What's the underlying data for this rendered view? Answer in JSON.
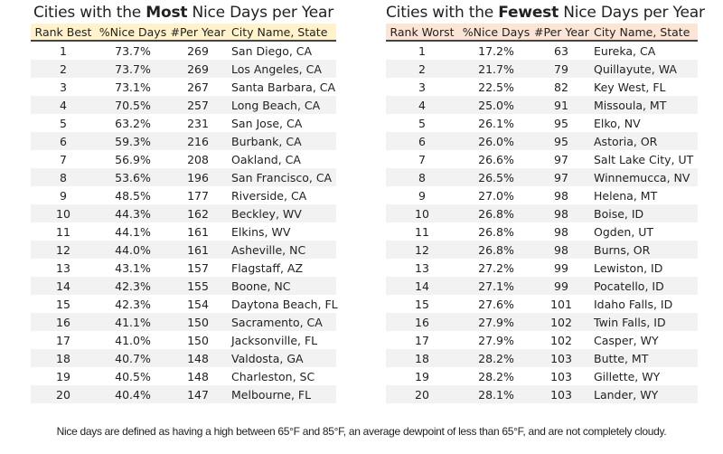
{
  "left": {
    "title_pre": "Cities with the ",
    "title_bold": "Most",
    "title_post": " Nice Days per Year",
    "header_color": "#fff2cc",
    "columns": [
      "Rank Best",
      "%Nice Days",
      "#Per Year",
      "City Name, State"
    ],
    "rows": [
      [
        "1",
        "73.7%",
        "269",
        "San Diego, CA"
      ],
      [
        "2",
        "73.7%",
        "269",
        "Los Angeles, CA"
      ],
      [
        "3",
        "73.1%",
        "267",
        "Santa Barbara, CA"
      ],
      [
        "4",
        "70.5%",
        "257",
        "Long Beach, CA"
      ],
      [
        "5",
        "63.2%",
        "231",
        "San Jose, CA"
      ],
      [
        "6",
        "59.3%",
        "216",
        "Burbank, CA"
      ],
      [
        "7",
        "56.9%",
        "208",
        "Oakland, CA"
      ],
      [
        "8",
        "53.6%",
        "196",
        "San Francisco, CA"
      ],
      [
        "9",
        "48.5%",
        "177",
        "Riverside, CA"
      ],
      [
        "10",
        "44.3%",
        "162",
        "Beckley, WV"
      ],
      [
        "11",
        "44.1%",
        "161",
        "Elkins, WV"
      ],
      [
        "12",
        "44.0%",
        "161",
        "Asheville, NC"
      ],
      [
        "13",
        "43.1%",
        "157",
        "Flagstaff, AZ"
      ],
      [
        "14",
        "42.3%",
        "155",
        "Boone, NC"
      ],
      [
        "15",
        "42.3%",
        "154",
        "Daytona Beach, FL"
      ],
      [
        "16",
        "41.1%",
        "150",
        "Sacramento, CA"
      ],
      [
        "17",
        "41.0%",
        "150",
        "Jacksonville, FL"
      ],
      [
        "18",
        "40.7%",
        "148",
        "Valdosta, GA"
      ],
      [
        "19",
        "40.5%",
        "148",
        "Charleston, SC"
      ],
      [
        "20",
        "40.4%",
        "147",
        "Melbourne, FL"
      ]
    ]
  },
  "right": {
    "title_pre": "Cities with the ",
    "title_bold": "Fewest",
    "title_post": " Nice Days per Year",
    "header_color": "#fce4d6",
    "columns": [
      "Rank Worst",
      "%Nice Days",
      "#Per Year",
      "City Name, State"
    ],
    "rows": [
      [
        "1",
        "17.2%",
        "63",
        "Eureka, CA"
      ],
      [
        "2",
        "21.7%",
        "79",
        "Quillayute, WA"
      ],
      [
        "3",
        "22.5%",
        "82",
        "Key West, FL"
      ],
      [
        "4",
        "25.0%",
        "91",
        "Missoula, MT"
      ],
      [
        "5",
        "26.1%",
        "95",
        "Elko, NV"
      ],
      [
        "6",
        "26.0%",
        "95",
        "Astoria, OR"
      ],
      [
        "7",
        "26.6%",
        "97",
        "Salt Lake City, UT"
      ],
      [
        "8",
        "26.5%",
        "97",
        "Winnemucca, NV"
      ],
      [
        "9",
        "27.0%",
        "98",
        "Helena, MT"
      ],
      [
        "10",
        "26.8%",
        "98",
        "Boise, ID"
      ],
      [
        "11",
        "26.8%",
        "98",
        "Ogden, UT"
      ],
      [
        "12",
        "26.8%",
        "98",
        "Burns, OR"
      ],
      [
        "13",
        "27.2%",
        "99",
        "Lewiston, ID"
      ],
      [
        "14",
        "27.1%",
        "99",
        "Pocatello, ID"
      ],
      [
        "15",
        "27.6%",
        "101",
        "Idaho Falls, ID"
      ],
      [
        "16",
        "27.9%",
        "102",
        "Twin Falls, ID"
      ],
      [
        "17",
        "27.9%",
        "102",
        "Casper, WY"
      ],
      [
        "18",
        "28.2%",
        "103",
        "Butte, MT"
      ],
      [
        "19",
        "28.2%",
        "103",
        "Gillette, WY"
      ],
      [
        "20",
        "28.1%",
        "103",
        "Lander, WY"
      ]
    ]
  },
  "footer": "Nice days are defined as having a high between 65°F and 85°F, an average dewpoint of less than 65°F, and are not completely cloudy."
}
